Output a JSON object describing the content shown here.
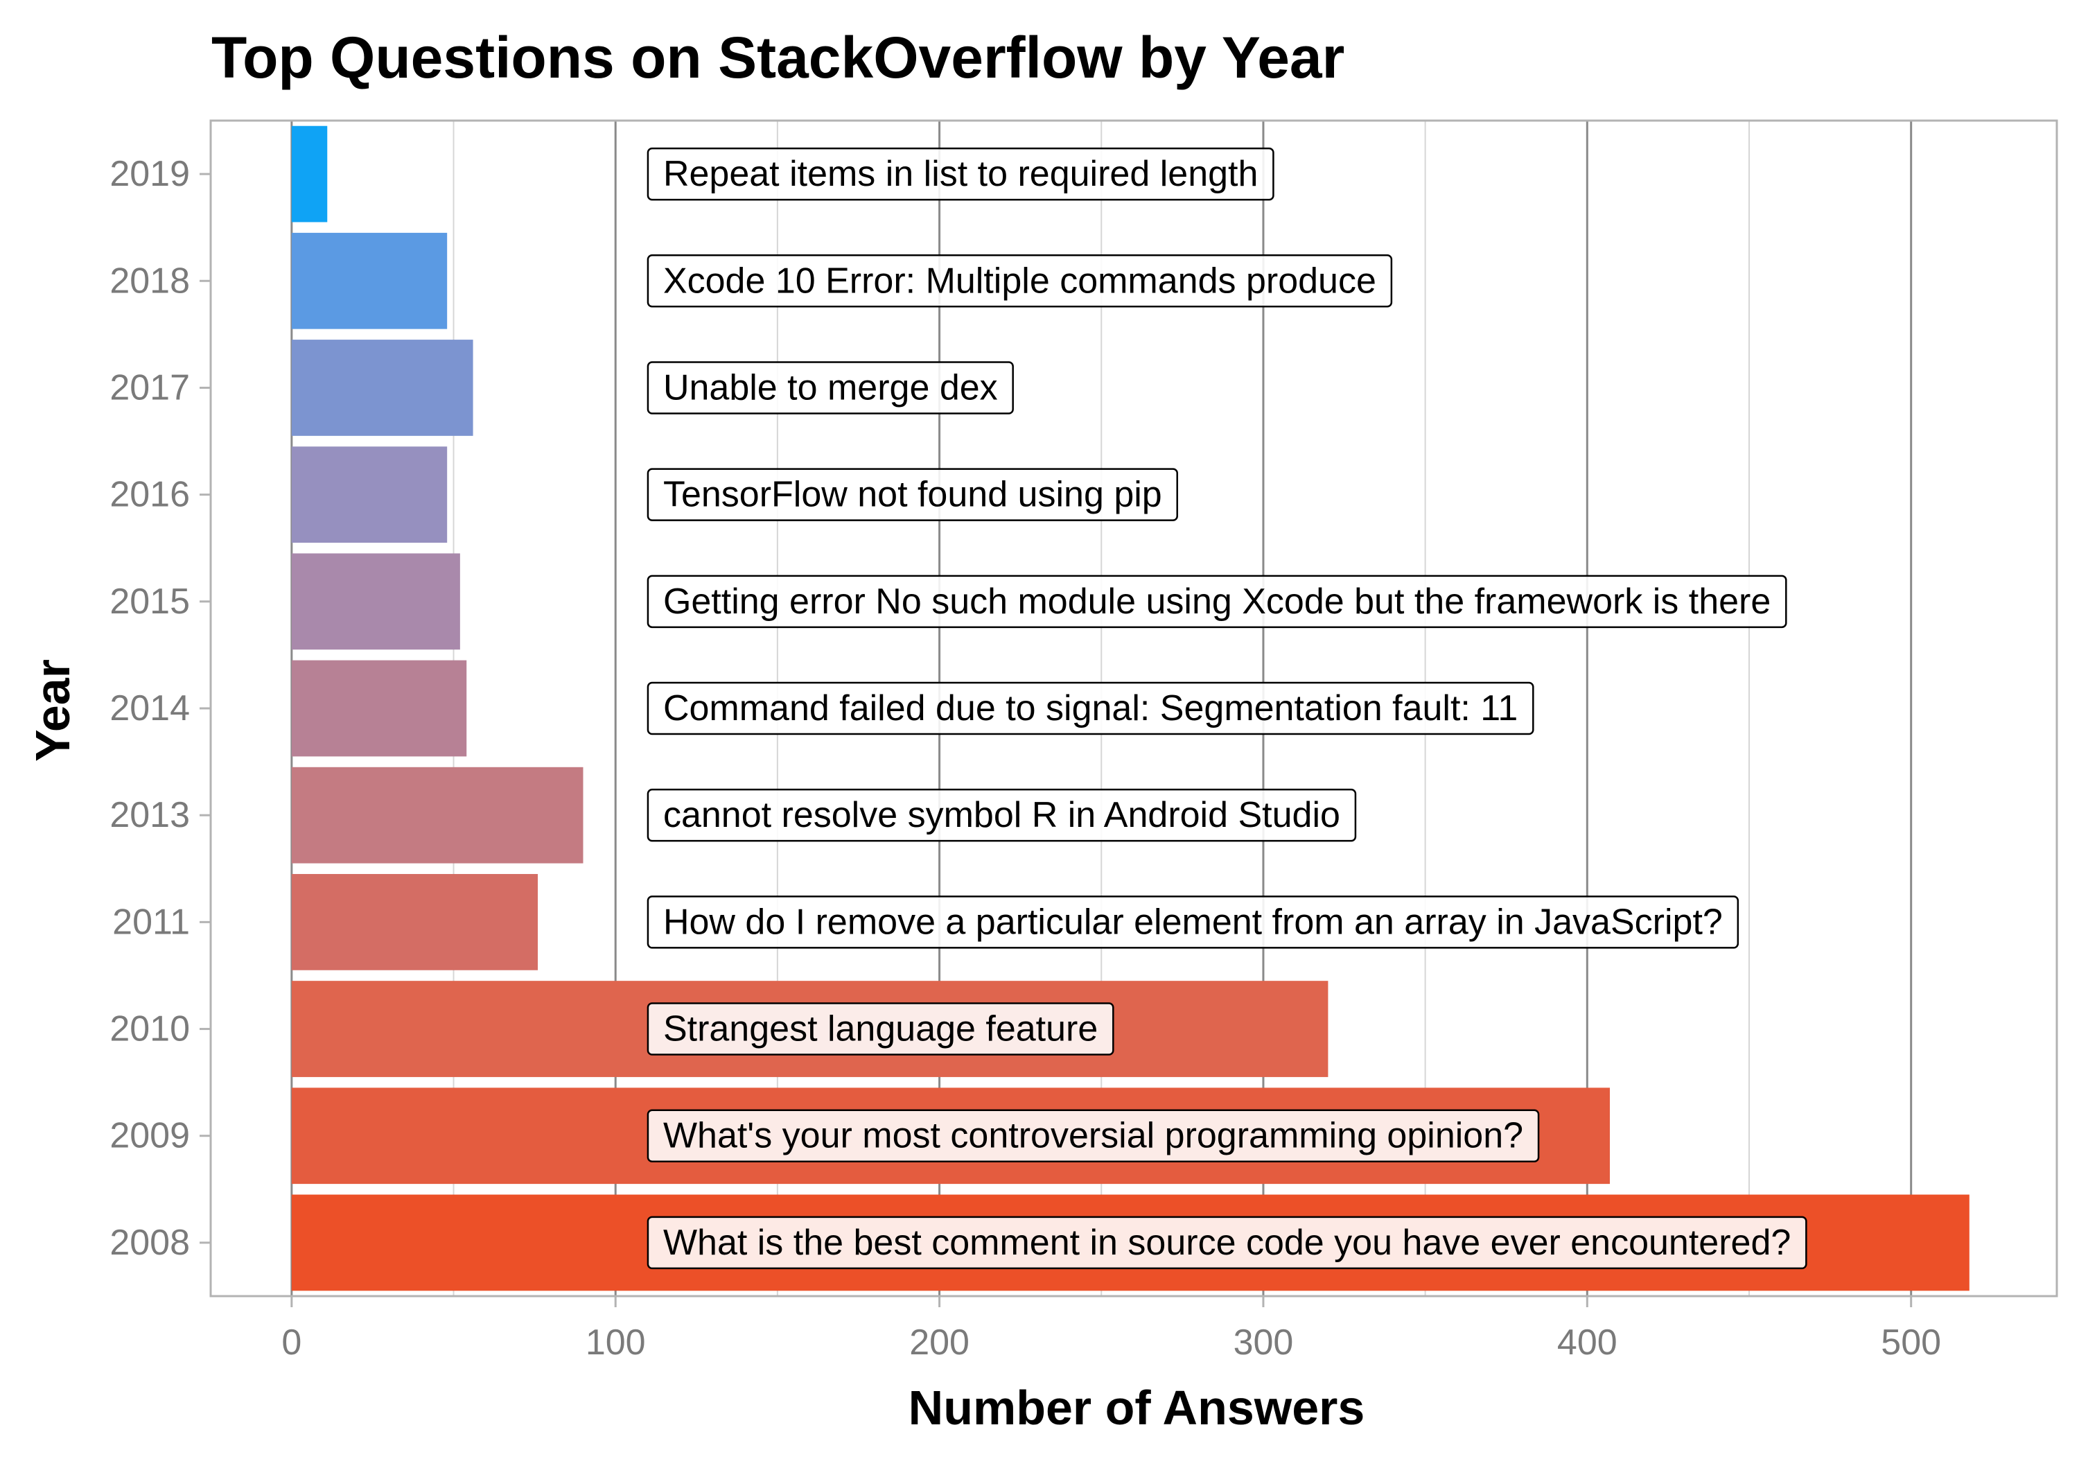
{
  "chart_data": {
    "type": "bar",
    "orientation": "horizontal",
    "title": "Top Questions on StackOverflow by Year",
    "xlabel": "Number of Answers",
    "ylabel": "Year",
    "xlim": [
      -25,
      545
    ],
    "x_ticks": [
      0,
      100,
      200,
      300,
      400,
      500
    ],
    "grid": true,
    "legend": "none",
    "categories": [
      "2019",
      "2018",
      "2017",
      "2016",
      "2015",
      "2014",
      "2013",
      "2011",
      "2010",
      "2009",
      "2008"
    ],
    "values": [
      11,
      48,
      56,
      48,
      52,
      54,
      90,
      76,
      320,
      407,
      518
    ],
    "annotations": [
      "Repeat items in list to required length",
      "Xcode 10 Error: Multiple commands produce",
      "Unable to merge dex",
      "TensorFlow not found using pip",
      "Getting error No such module using Xcode but the framework is there",
      "Command failed due to signal: Segmentation fault: 11",
      "cannot resolve symbol R in Android Studio",
      "How do I remove a particular element from an array in JavaScript?",
      "Strangest language feature",
      "What's your most controversial programming opinion?",
      "What is the best comment in source code you have ever encountered?"
    ],
    "annotation_x": 110,
    "colors": [
      "#0fa3f5",
      "#5b9ae3",
      "#7c94d0",
      "#9690bf",
      "#a989ab",
      "#b78195",
      "#c47b82",
      "#d46d64",
      "#df654e",
      "#e45c3f",
      "#ec5028"
    ]
  }
}
